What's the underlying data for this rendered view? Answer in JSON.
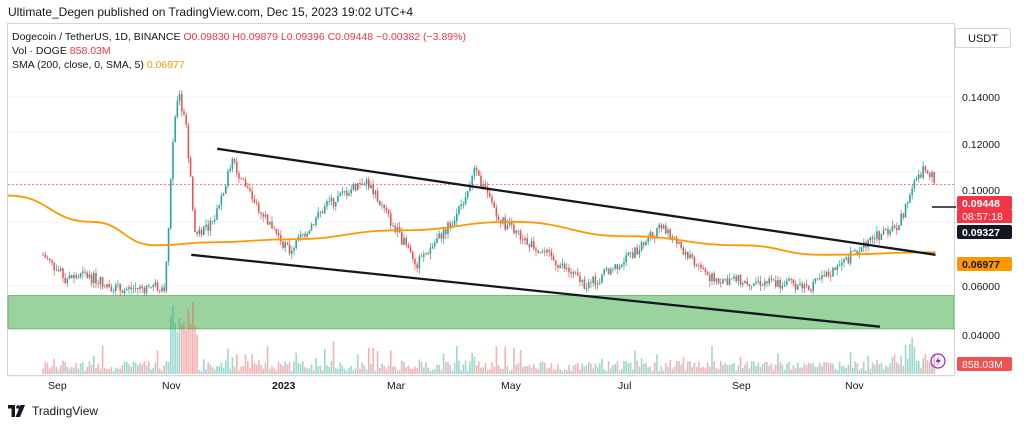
{
  "header": {
    "publish_line": "Ultimate_Degen published on TradingView.com, Dec 15, 2023 19:02 UTC+4"
  },
  "legend": {
    "symbol": "Dogecoin / TetherUS, 1D, BINANCE",
    "ohlc_line": "O0.09830 H0.09879 L0.09396 C0.09448 −0.00382 (−3.89%)",
    "volume_label": "Vol · DOGE",
    "volume_value": "858.03M",
    "sma_label": "SMA (200, close, 0, SMA, 5)",
    "sma_value": "0.06977"
  },
  "currency_button": "USDT",
  "price_axis": {
    "ticks": [
      "0.14000",
      "0.12000",
      "0.10000",
      "0.06000",
      "0.04000"
    ],
    "badges": {
      "last_price": "0.09448",
      "countdown": "08:57:18",
      "line_level": "0.09327",
      "sma": "0.06977",
      "volume": "858.03M"
    }
  },
  "time_axis": {
    "labels": [
      "Sep",
      "Nov",
      "2023",
      "Mar",
      "May",
      "Jul",
      "Sep",
      "Nov"
    ]
  },
  "colors": {
    "up": "#26a69a",
    "down": "#ef5350",
    "sma": "#ff9800",
    "support_zone": "#66bb6a",
    "trendline": "#131722",
    "last_price_badge": "#f23645",
    "sma_badge": "#ff9800"
  },
  "footer": {
    "brand": "TradingView"
  },
  "chart_data": {
    "type": "line",
    "y_scale": "log",
    "x_range": [
      "2022-08",
      "2023-12-15"
    ],
    "y_range": [
      0.037,
      0.165
    ],
    "price_series_control_points": [
      {
        "date": "2022-08-20",
        "price": 0.069
      },
      {
        "date": "2022-09-01",
        "price": 0.062
      },
      {
        "date": "2022-09-12",
        "price": 0.063
      },
      {
        "date": "2022-10-01",
        "price": 0.059
      },
      {
        "date": "2022-10-25",
        "price": 0.06
      },
      {
        "date": "2022-10-29",
        "price": 0.115
      },
      {
        "date": "2022-11-01",
        "price": 0.142
      },
      {
        "date": "2022-11-05",
        "price": 0.125
      },
      {
        "date": "2022-11-10",
        "price": 0.076
      },
      {
        "date": "2022-11-20",
        "price": 0.08
      },
      {
        "date": "2022-11-30",
        "price": 0.105
      },
      {
        "date": "2022-12-10",
        "price": 0.09
      },
      {
        "date": "2022-12-31",
        "price": 0.07
      },
      {
        "date": "2023-01-20",
        "price": 0.086
      },
      {
        "date": "2023-02-10",
        "price": 0.097
      },
      {
        "date": "2023-03-10",
        "price": 0.066
      },
      {
        "date": "2023-03-31",
        "price": 0.082
      },
      {
        "date": "2023-04-10",
        "price": 0.1
      },
      {
        "date": "2023-04-25",
        "price": 0.08
      },
      {
        "date": "2023-05-10",
        "price": 0.073
      },
      {
        "date": "2023-06-10",
        "price": 0.06
      },
      {
        "date": "2023-07-01",
        "price": 0.068
      },
      {
        "date": "2023-07-20",
        "price": 0.078
      },
      {
        "date": "2023-08-16",
        "price": 0.062
      },
      {
        "date": "2023-09-15",
        "price": 0.061
      },
      {
        "date": "2023-10-10",
        "price": 0.06
      },
      {
        "date": "2023-10-25",
        "price": 0.066
      },
      {
        "date": "2023-11-10",
        "price": 0.074
      },
      {
        "date": "2023-11-25",
        "price": 0.079
      },
      {
        "date": "2023-12-05",
        "price": 0.098
      },
      {
        "date": "2023-12-10",
        "price": 0.103
      },
      {
        "date": "2023-12-15",
        "price": 0.0945
      }
    ],
    "sma_series_control_points": [
      {
        "date": "2022-08-01",
        "price": 0.09
      },
      {
        "date": "2022-09-15",
        "price": 0.08
      },
      {
        "date": "2022-10-20",
        "price": 0.072
      },
      {
        "date": "2022-11-20",
        "price": 0.073
      },
      {
        "date": "2023-01-01",
        "price": 0.074
      },
      {
        "date": "2023-03-01",
        "price": 0.077
      },
      {
        "date": "2023-05-01",
        "price": 0.08
      },
      {
        "date": "2023-07-01",
        "price": 0.075
      },
      {
        "date": "2023-09-01",
        "price": 0.072
      },
      {
        "date": "2023-10-15",
        "price": 0.069
      },
      {
        "date": "2023-12-15",
        "price": 0.0698
      }
    ],
    "upper_trendline": [
      {
        "date": "2022-11-22",
        "price": 0.111
      },
      {
        "date": "2023-12-15",
        "price": 0.069
      }
    ],
    "lower_trendline": [
      {
        "date": "2022-11-08",
        "price": 0.069
      },
      {
        "date": "2023-11-15",
        "price": 0.05
      }
    ],
    "support_zone": {
      "from": 0.0495,
      "to": 0.0575
    },
    "last_price_line": 0.09448
  }
}
